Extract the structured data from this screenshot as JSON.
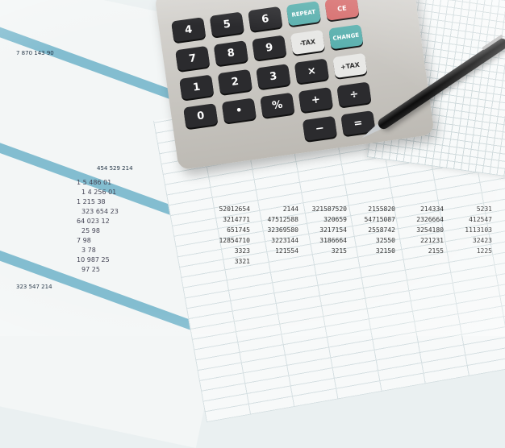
{
  "scene": "Calculator, pen and printed financial spreadsheets",
  "left_sheet": {
    "strips": [
      "7 870 143 90",
      "454 529 214",
      "323 547 214"
    ],
    "numbers": [
      "1 5 486 01",
      "1 4 256 01",
      "1 215 38",
      "323 654 23",
      "64 023 12",
      "25 98",
      "7 98",
      "3 78",
      "10 987 25",
      "97 25"
    ]
  },
  "right_sheet": {
    "numbers": [
      "52012654",
      "2144",
      "321587520",
      "2155820",
      "214334",
      "5231",
      "3214771",
      "47512588",
      "320659",
      "54715087",
      "2326664",
      "412547",
      "651745",
      "32369580",
      "3217154",
      "2558742",
      "3254180",
      "1113103",
      "12854710",
      "3223144",
      "3186664",
      "32550",
      "221231",
      "32423",
      "3323",
      "121554",
      "3215",
      "32150",
      "2155",
      "1225",
      "3321"
    ]
  },
  "calculator": {
    "keys": [
      {
        "label": "4"
      },
      {
        "label": "5"
      },
      {
        "label": "6"
      },
      {
        "label": "REPEAT",
        "style": "teal"
      },
      {
        "label": "CE",
        "style": "red"
      },
      {
        "label": ""
      },
      {
        "label": "7"
      },
      {
        "label": "8"
      },
      {
        "label": "9"
      },
      {
        "label": "-TAX",
        "style": "fn"
      },
      {
        "label": "CHANGE",
        "style": "teal"
      },
      {
        "label": ""
      },
      {
        "label": "1"
      },
      {
        "label": "2"
      },
      {
        "label": "3"
      },
      {
        "label": "×"
      },
      {
        "label": "+TAX",
        "style": "fn"
      },
      {
        "label": ""
      },
      {
        "label": "0"
      },
      {
        "label": "•"
      },
      {
        "label": "%"
      },
      {
        "label": "+"
      },
      {
        "label": "÷"
      },
      {
        "label": ""
      },
      {
        "label": ""
      },
      {
        "label": ""
      },
      {
        "label": ""
      },
      {
        "label": "−"
      },
      {
        "label": "="
      },
      {
        "label": ""
      }
    ]
  },
  "colors": {
    "strip": "#6fb3c9",
    "key_dark": "#2b2b2e",
    "key_teal": "#5ab0ae",
    "key_red": "#d66a6a"
  }
}
